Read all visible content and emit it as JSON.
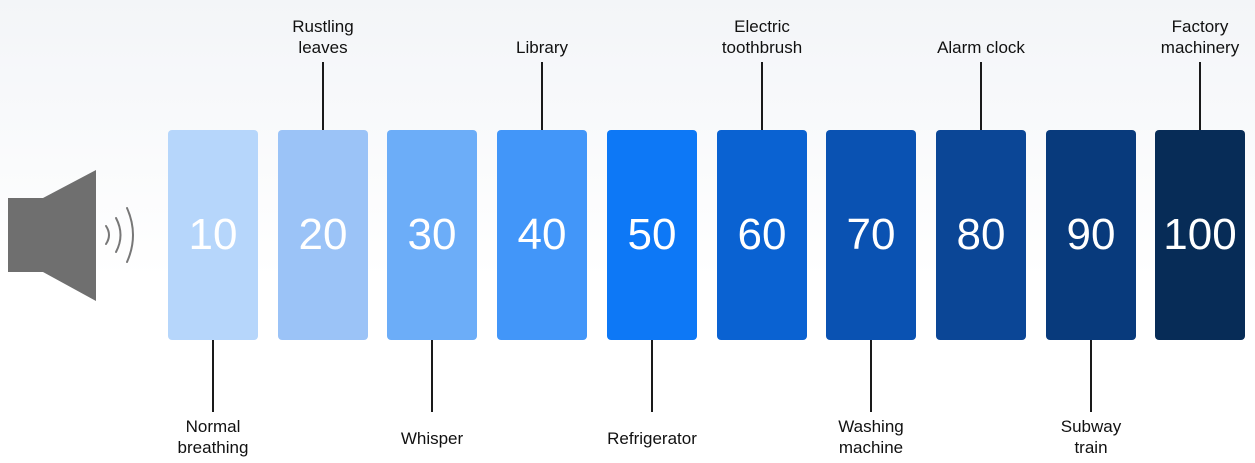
{
  "scale": [
    {
      "value": "10",
      "color": "#b6d6fb",
      "label": [
        "Normal",
        "breathing"
      ],
      "position": "below"
    },
    {
      "value": "20",
      "color": "#9bc3f7",
      "label": [
        "Rustling",
        "leaves"
      ],
      "position": "above"
    },
    {
      "value": "30",
      "color": "#6cadf8",
      "label": [
        "Whisper"
      ],
      "position": "below"
    },
    {
      "value": "40",
      "color": "#4296f9",
      "label": [
        "Library"
      ],
      "position": "above"
    },
    {
      "value": "50",
      "color": "#0d78f6",
      "label": [
        "Refrigerator"
      ],
      "position": "below"
    },
    {
      "value": "60",
      "color": "#0a62d2",
      "label": [
        "Electric",
        "toothbrush"
      ],
      "position": "above"
    },
    {
      "value": "70",
      "color": "#0a52b2",
      "label": [
        "Washing",
        "machine"
      ],
      "position": "below"
    },
    {
      "value": "80",
      "color": "#0b4696",
      "label": [
        "Alarm clock"
      ],
      "position": "above"
    },
    {
      "value": "90",
      "color": "#083a7c",
      "label": [
        "Subway",
        "train"
      ],
      "position": "below"
    },
    {
      "value": "100",
      "color": "#072c57",
      "label": [
        "Factory",
        "machinery"
      ],
      "position": "above"
    }
  ],
  "icons": {
    "speaker": "speaker-icon",
    "sound_waves": "sound-waves-icon"
  },
  "colors": {
    "speaker_fill": "#6f6f6f",
    "stem": "#1a1a1a",
    "label_text": "#111111"
  }
}
